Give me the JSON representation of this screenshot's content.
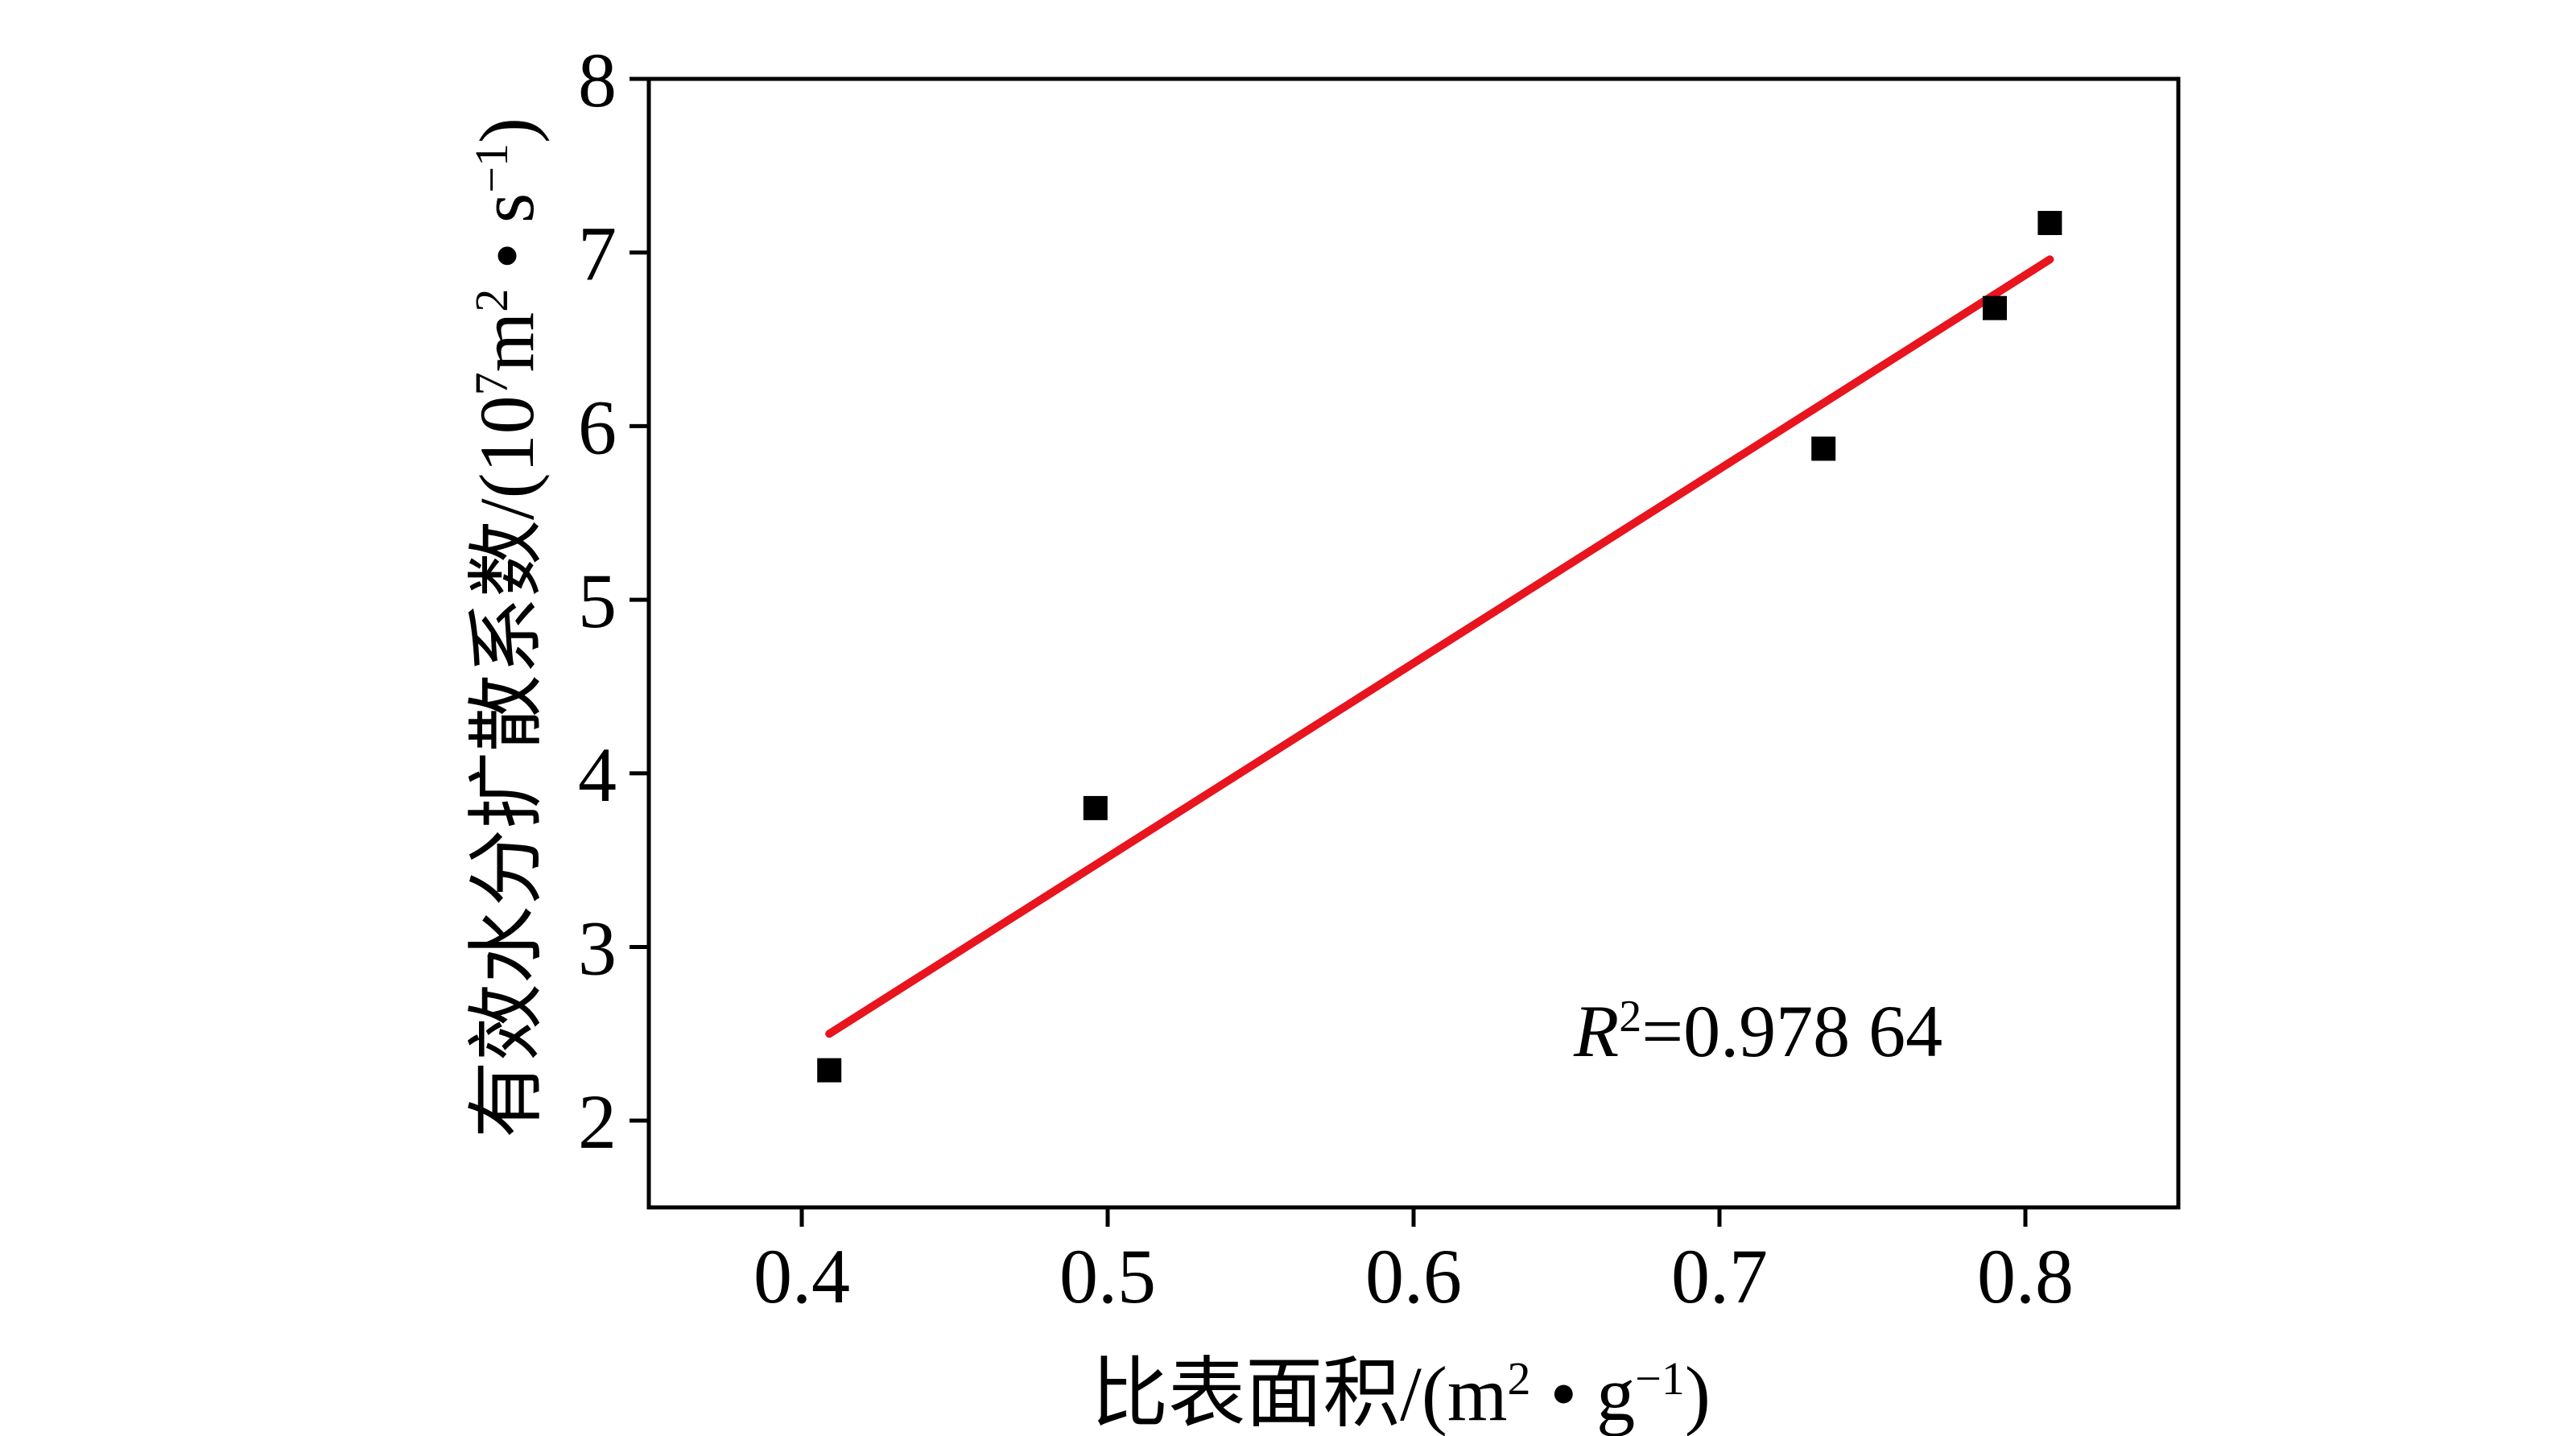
{
  "chart_data": {
    "type": "scatter",
    "xlabel": {
      "prefix": "比表面积/(m",
      "sup1": "2",
      "middle": " • g",
      "sup2": "−1",
      "suffix": ")"
    },
    "ylabel": {
      "prefix": "有效水分扩散系数/(10",
      "sup1": "7",
      "mid1": "m",
      "sup2": "2",
      "mid2": " • s",
      "sup3": "−1",
      "suffix": ")"
    },
    "xlim": [
      0.35,
      0.85
    ],
    "ylim": [
      1.5,
      8
    ],
    "x_ticks": [
      0.4,
      0.5,
      0.6,
      0.7,
      0.8
    ],
    "x_tick_labels": [
      "0.4",
      "0.5",
      "0.6",
      "0.7",
      "0.8"
    ],
    "y_ticks": [
      2,
      3,
      4,
      5,
      6,
      7,
      8
    ],
    "y_tick_labels": [
      "2",
      "3",
      "4",
      "5",
      "6",
      "7",
      "8"
    ],
    "grid": false,
    "legend": "none",
    "points": {
      "x": [
        0.409,
        0.496,
        0.734,
        0.79,
        0.808
      ],
      "y": [
        2.29,
        3.8,
        5.87,
        6.68,
        7.17
      ]
    },
    "fit_line": {
      "x": [
        0.409,
        0.808
      ],
      "y": [
        2.5,
        6.96
      ],
      "color": "#e8141e"
    },
    "annotation": {
      "r": "R",
      "sup": "2",
      "text": "=0.978 64"
    },
    "marker_color": "#000000",
    "axis_color": "#000000"
  }
}
